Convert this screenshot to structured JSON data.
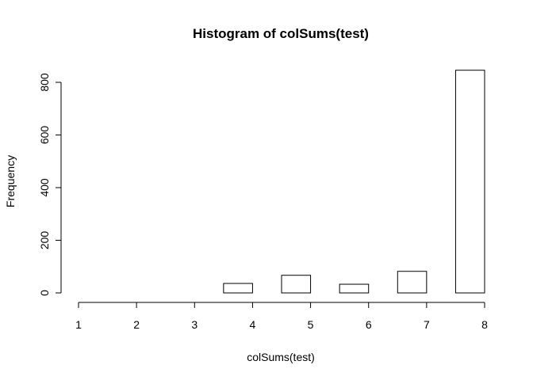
{
  "chart_data": {
    "type": "bar",
    "title": "Histogram of colSums(test)",
    "xlabel": "colSums(test)",
    "ylabel": "Frequency",
    "xlim": [
      1,
      8
    ],
    "ylim": [
      0,
      840
    ],
    "x_ticks": [
      1,
      2,
      3,
      4,
      5,
      6,
      7,
      8
    ],
    "y_ticks": [
      0,
      200,
      400,
      600,
      800
    ],
    "bins": [
      {
        "start": 1.0,
        "end": 1.5,
        "count": 0
      },
      {
        "start": 1.5,
        "end": 2.0,
        "count": 0
      },
      {
        "start": 2.0,
        "end": 2.5,
        "count": 0
      },
      {
        "start": 2.5,
        "end": 3.0,
        "count": 0
      },
      {
        "start": 3.0,
        "end": 3.5,
        "count": 0
      },
      {
        "start": 3.5,
        "end": 4.0,
        "count": 36
      },
      {
        "start": 4.0,
        "end": 4.5,
        "count": 0
      },
      {
        "start": 4.5,
        "end": 5.0,
        "count": 67
      },
      {
        "start": 5.0,
        "end": 5.5,
        "count": 0
      },
      {
        "start": 5.5,
        "end": 6.0,
        "count": 33
      },
      {
        "start": 6.0,
        "end": 6.5,
        "count": 0
      },
      {
        "start": 6.5,
        "end": 7.0,
        "count": 82
      },
      {
        "start": 7.0,
        "end": 7.5,
        "count": 0
      },
      {
        "start": 7.5,
        "end": 8.0,
        "count": 846
      }
    ],
    "grid": false,
    "bar_fill": "#ffffff",
    "bar_stroke": "#000000"
  }
}
